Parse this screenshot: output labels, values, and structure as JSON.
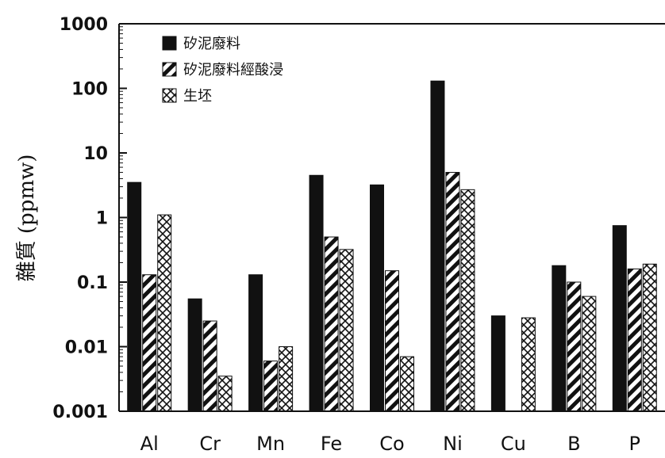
{
  "chart_data": {
    "type": "bar",
    "title": "",
    "xlabel": "",
    "ylabel": "雜質 (ppmw)",
    "yscale": "log",
    "ylim": [
      0.001,
      1000
    ],
    "yticks": [
      "0.001",
      "0.01",
      "0.1",
      "1",
      "10",
      "100",
      "1000"
    ],
    "categories": [
      "Al",
      "Cr",
      "Mn",
      "Fe",
      "Co",
      "Ni",
      "Cu",
      "B",
      "P"
    ],
    "legend_position": "top-left",
    "series": [
      {
        "name": "矽泥廢料",
        "pattern": "solid",
        "values": [
          3.5,
          0.055,
          0.13,
          4.5,
          3.2,
          130,
          0.03,
          0.18,
          0.75
        ]
      },
      {
        "name": "矽泥廢料經酸浸",
        "pattern": "diagonal-hatch",
        "values": [
          0.13,
          0.025,
          0.006,
          0.5,
          0.15,
          5,
          0.001,
          0.1,
          0.16
        ]
      },
      {
        "name": "生坯",
        "pattern": "crosshatch",
        "values": [
          1.1,
          0.0035,
          0.01,
          0.32,
          0.007,
          2.7,
          0.028,
          0.06,
          0.19
        ]
      }
    ]
  }
}
